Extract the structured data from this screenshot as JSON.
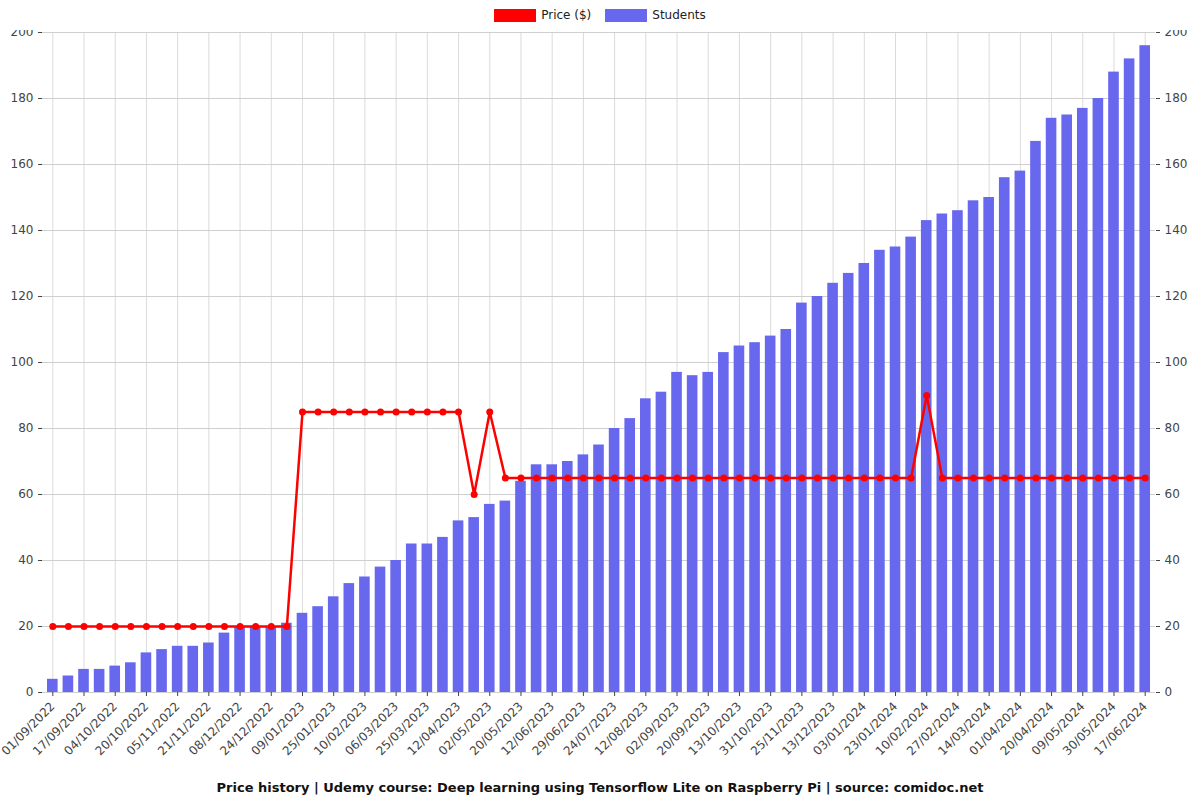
{
  "chart_data": {
    "type": "bar",
    "title": "Price history | Udemy course: Deep learning using Tensorflow Lite on Raspberry Pi | source: comidoc.net",
    "categories": [
      "01/09/2022",
      null,
      "17/09/2022",
      null,
      "04/10/2022",
      null,
      "20/10/2022",
      null,
      "05/11/2022",
      null,
      "21/11/2022",
      null,
      "08/12/2022",
      null,
      "24/12/2022",
      null,
      "09/01/2023",
      null,
      "25/01/2023",
      null,
      "10/02/2023",
      null,
      "06/03/2023",
      null,
      "25/03/2023",
      null,
      "12/04/2023",
      null,
      "02/05/2023",
      null,
      "20/05/2023",
      null,
      "12/06/2023",
      null,
      "29/06/2023",
      null,
      "24/07/2023",
      null,
      "12/08/2023",
      null,
      "02/09/2023",
      null,
      "20/09/2023",
      null,
      "13/10/2023",
      null,
      "31/10/2023",
      null,
      "25/11/2023",
      null,
      "13/12/2023",
      null,
      "03/01/2024",
      null,
      "23/01/2024",
      null,
      "10/02/2024",
      null,
      "27/02/2024",
      null,
      "14/03/2024",
      null,
      "01/04/2024",
      null,
      "20/04/2024",
      null,
      "09/05/2024",
      null,
      "30/05/2024",
      null,
      "17/06/2024"
    ],
    "series": [
      {
        "name": "Price ($)",
        "type": "line",
        "color": "#ff0000",
        "marker": "circle",
        "values": [
          20,
          20,
          20,
          20,
          20,
          20,
          20,
          20,
          20,
          20,
          20,
          20,
          20,
          20,
          20,
          20,
          85,
          85,
          85,
          85,
          85,
          85,
          85,
          85,
          85,
          85,
          85,
          60,
          85,
          65,
          65,
          65,
          65,
          65,
          65,
          65,
          65,
          65,
          65,
          65,
          65,
          65,
          65,
          65,
          65,
          65,
          65,
          65,
          65,
          65,
          65,
          65,
          65,
          65,
          65,
          65,
          90,
          65,
          65,
          65,
          65,
          65,
          65,
          65,
          65,
          65,
          65,
          65,
          65,
          65,
          65
        ]
      },
      {
        "name": "Students",
        "type": "bar",
        "color": "#6868ee",
        "values": [
          4,
          5,
          7,
          7,
          8,
          9,
          12,
          13,
          14,
          14,
          15,
          18,
          20,
          20,
          20,
          21,
          24,
          26,
          29,
          33,
          35,
          38,
          40,
          45,
          45,
          47,
          52,
          53,
          57,
          58,
          64,
          69,
          69,
          70,
          72,
          75,
          80,
          83,
          89,
          91,
          97,
          96,
          97,
          103,
          105,
          106,
          108,
          110,
          118,
          120,
          124,
          127,
          130,
          134,
          135,
          138,
          143,
          145,
          146,
          149,
          150,
          156,
          158,
          167,
          174,
          175,
          177,
          180,
          188,
          192,
          196
        ]
      }
    ],
    "ylim": [
      0,
      200
    ],
    "yticks": [
      0,
      20,
      40,
      60,
      80,
      100,
      120,
      140,
      160,
      180,
      200
    ],
    "grid": true,
    "legend": "top"
  }
}
